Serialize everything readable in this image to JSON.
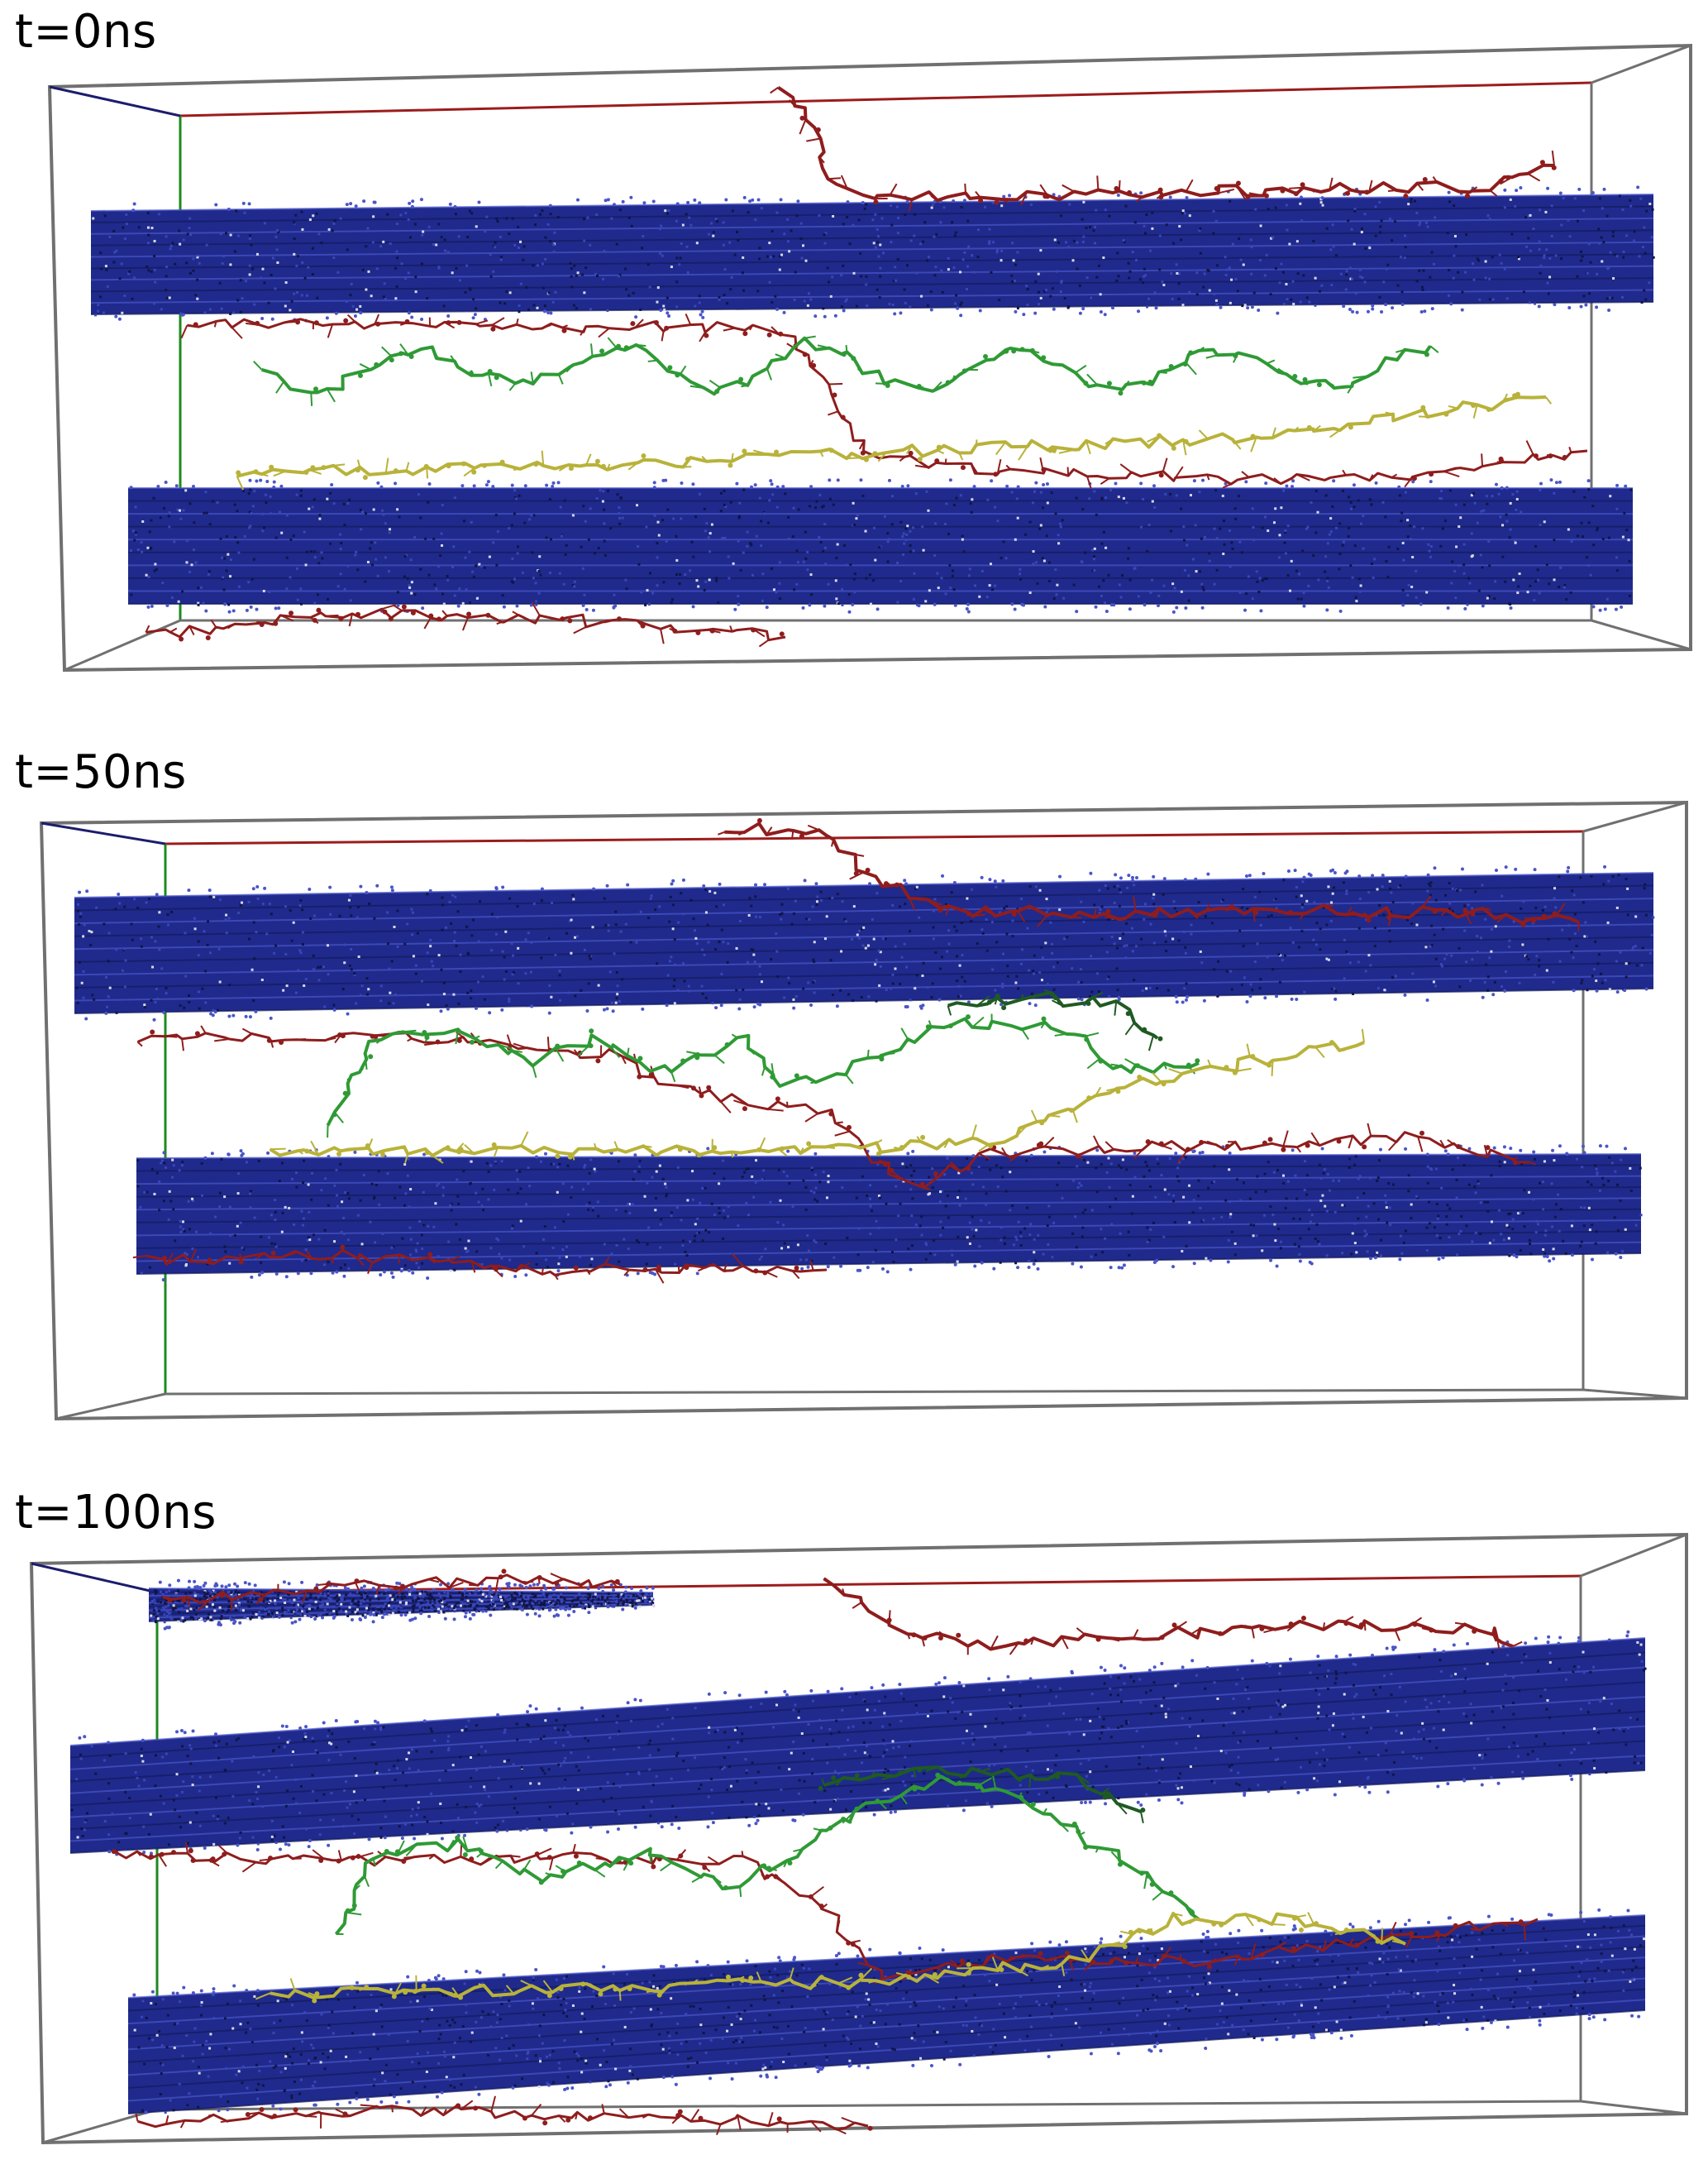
{
  "panels": [
    {
      "label": "t=0ns"
    },
    {
      "label": "t=50ns"
    },
    {
      "label": "t=100ns"
    }
  ],
  "colors": {
    "box_edge": "#707070",
    "axis_x": "#9c1c1c",
    "axis_y": "#1e8a1e",
    "axis_z": "#1c1c6e",
    "sheet": "#1f2a8c",
    "sheet_dark": "#141b5e",
    "sheet_light": "#4a55c8",
    "chain_red": "#8f1d1d",
    "chain_green": "#2f9a35",
    "chain_darkgreen": "#1f5a22",
    "chain_yellow": "#b8b23a"
  }
}
